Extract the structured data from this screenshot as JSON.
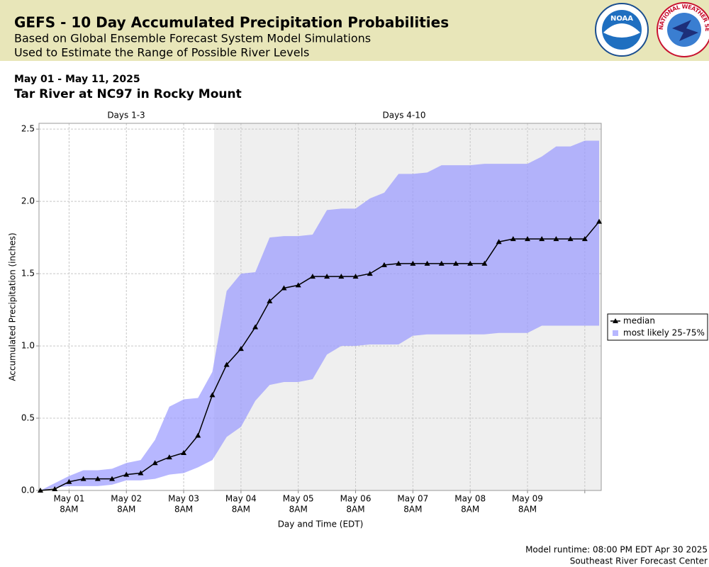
{
  "header": {
    "title": "GEFS - 10 Day Accumulated Precipitation Probabilities",
    "line1": "Based on Global Ensemble Forecast System Model Simulations",
    "line2": "Used to Estimate the Range of Possible River Levels",
    "noaa_logo": "NOAA",
    "nws_logo": "NATIONAL WEATHER SERVICE"
  },
  "chart_data": {
    "type": "line",
    "date_range": "May 01 - May 11, 2025",
    "title": "Tar River at NC97 in Rocky Mount",
    "regions": [
      "Days 1-3",
      "Days 4-10"
    ],
    "y_label": "Accumulated Precipitation (inches)",
    "x_label": "Day and Time (EDT)",
    "categories": [
      null,
      null,
      [
        "May 01",
        "8AM"
      ],
      null,
      null,
      null,
      [
        "May 02",
        "8AM"
      ],
      null,
      null,
      null,
      [
        "May 03",
        "8AM"
      ],
      null,
      null,
      null,
      [
        "May 04",
        "8AM"
      ],
      null,
      null,
      null,
      [
        "May 05",
        "8AM"
      ],
      null,
      null,
      null,
      [
        "May 06",
        "8AM"
      ],
      null,
      null,
      null,
      [
        "May 07",
        "8AM"
      ],
      null,
      null,
      null,
      [
        "May 08",
        "8AM"
      ],
      null,
      null,
      null,
      [
        "May 09",
        "8AM"
      ],
      null,
      null,
      null,
      null,
      null
    ],
    "ylim": [
      0,
      2.54
    ],
    "yticks": [
      {
        "value": 0,
        "label": "0.0"
      },
      0.5,
      {
        "value": 1,
        "label": "1.0"
      },
      1.5,
      {
        "value": 2,
        "label": "2.0"
      },
      2.5
    ],
    "grid": true,
    "series": [
      {
        "name": "median",
        "color": "#000000",
        "values": [
          0,
          0.01,
          0.06,
          0.08,
          0.08,
          0.08,
          0.11,
          0.12,
          0.19,
          0.23,
          0.26,
          0.38,
          0.66,
          0.87,
          0.98,
          1.13,
          1.31,
          1.4,
          1.42,
          1.48,
          1.48,
          1.48,
          1.48,
          1.5,
          1.56,
          1.57,
          1.57,
          1.57,
          1.57,
          1.57,
          1.57,
          1.57,
          1.72,
          1.74,
          1.74,
          1.74,
          1.74,
          1.74,
          1.74,
          1.86
        ]
      },
      {
        "name": "most likely 25-75%",
        "color": "#9999ff",
        "upper": [
          0,
          0.05,
          0.1,
          0.14,
          0.14,
          0.15,
          0.19,
          0.21,
          0.35,
          0.58,
          0.63,
          0.64,
          0.82,
          1.38,
          1.5,
          1.51,
          1.75,
          1.76,
          1.76,
          1.77,
          1.94,
          1.95,
          1.95,
          2.02,
          2.06,
          2.19,
          2.19,
          2.2,
          2.25,
          2.25,
          2.25,
          2.26,
          2.26,
          2.26,
          2.26,
          2.31,
          2.38,
          2.38,
          2.42,
          2.42
        ],
        "lower": [
          0,
          0.02,
          0.03,
          0.03,
          0.03,
          0.04,
          0.07,
          0.07,
          0.08,
          0.11,
          0.12,
          0.16,
          0.21,
          0.37,
          0.44,
          0.62,
          0.73,
          0.75,
          0.75,
          0.77,
          0.94,
          1.0,
          1.0,
          1.01,
          1.01,
          1.01,
          1.07,
          1.08,
          1.08,
          1.08,
          1.08,
          1.08,
          1.09,
          1.09,
          1.09,
          1.14,
          1.14,
          1.14,
          1.14,
          1.14
        ]
      }
    ]
  },
  "footer": {
    "runtime": "Model runtime: 08:00 PM EDT Apr 30 2025",
    "center": "Southeast River Forecast Center"
  }
}
